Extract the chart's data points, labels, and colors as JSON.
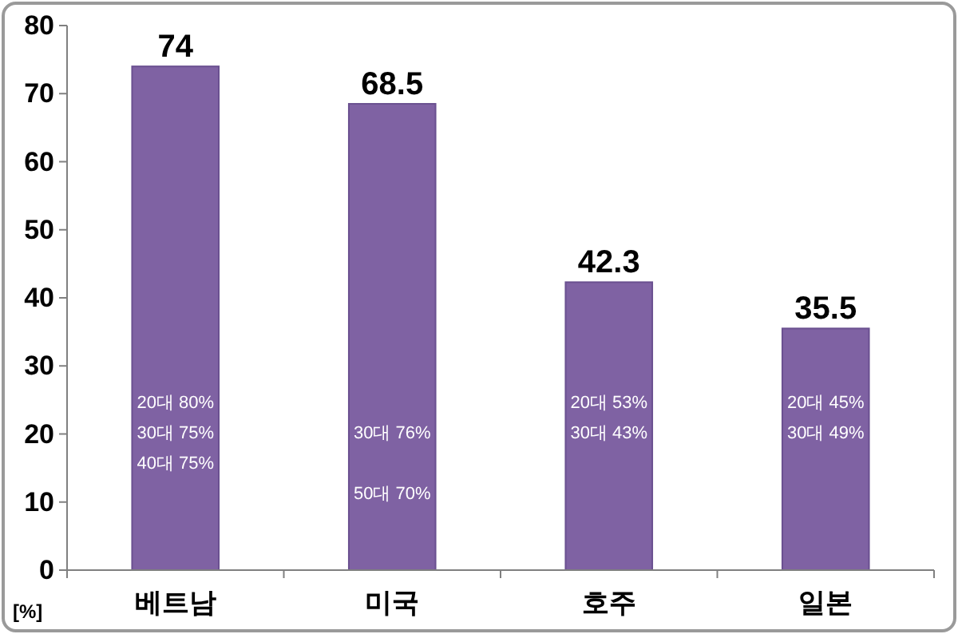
{
  "chart_data": {
    "type": "bar",
    "categories": [
      "베트남",
      "미국",
      "호주",
      "일본"
    ],
    "values": [
      74,
      68.5,
      42.3,
      35.5
    ],
    "color": "#7f62a3",
    "ylim": [
      0,
      80
    ],
    "yticks": [
      0,
      10,
      20,
      30,
      40,
      50,
      60,
      70,
      80
    ],
    "ylabel": "[%]",
    "data_labels": true,
    "annotations": [
      "20대 80%\n30대 75%\n40대 75%",
      "\n30대 76%\n\n50대 70%",
      "20대 53%\n30대 43%",
      "20대 45%\n30대 49%"
    ]
  }
}
